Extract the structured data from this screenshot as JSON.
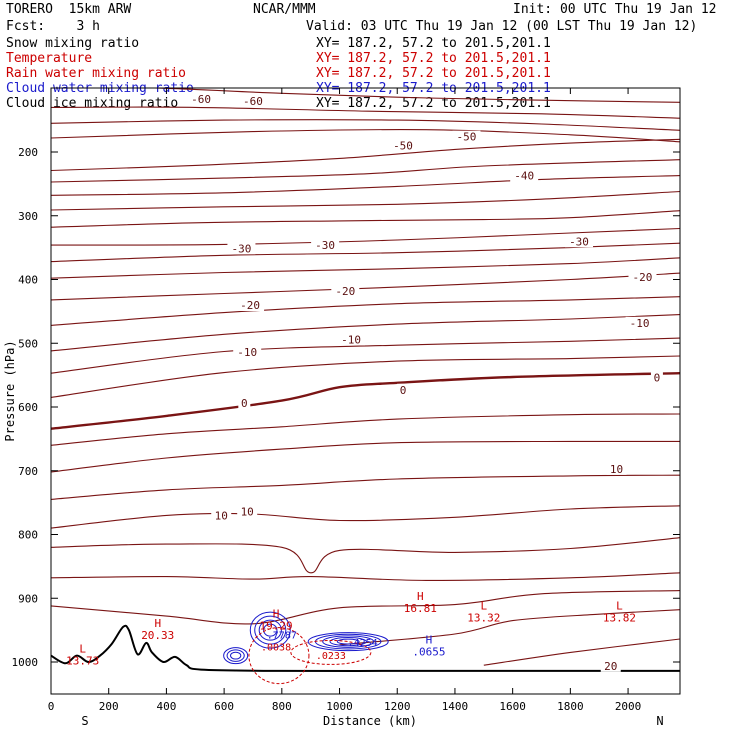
{
  "header": {
    "model": "TORERO  15km ARW",
    "center": "NCAR/MMM",
    "init": "Init: 00 UTC Thu 19 Jan 12",
    "fcst": "Fcst:    3 h",
    "valid": "Valid: 03 UTC Thu 19 Jan 12 (00 LST Thu 19 Jan 12)"
  },
  "fields": [
    {
      "name": "Snow mixing ratio",
      "xy": "XY= 187.2, 57.2 to 201.5,201.1",
      "color": "#000000"
    },
    {
      "name": "Temperature",
      "xy": "XY= 187.2, 57.2 to 201.5,201.1",
      "color": "#cc0000"
    },
    {
      "name": "Rain water mixing ratio",
      "xy": "XY= 187.2, 57.2 to 201.5,201.1",
      "color": "#cc0000"
    },
    {
      "name": "Cloud water mixing ratio",
      "xy": "XY= 187.2, 57.2 to 201.5,201.1",
      "color": "#1a1acc"
    },
    {
      "name": "Cloud ice mixing ratio",
      "xy": "XY= 187.2, 57.2 to 201.5,201.1",
      "color": "#000000"
    }
  ],
  "chart_data": {
    "type": "contour cross-section",
    "xlabel": "Distance (km)",
    "ylabel": "Pressure (hPa)",
    "xlim": [
      0,
      2180
    ],
    "ylim": [
      1050,
      100
    ],
    "x_ticks": [
      0,
      200,
      400,
      600,
      800,
      1000,
      1200,
      1400,
      1600,
      1800,
      2000
    ],
    "y_ticks": [
      200,
      300,
      400,
      500,
      600,
      700,
      800,
      900,
      1000
    ],
    "end_labels": {
      "left": "S",
      "right": "N"
    },
    "temperature_contours_C": [
      {
        "level": -60,
        "points": [
          [
            0,
            95
          ],
          [
            400,
            100
          ],
          [
            800,
            108
          ],
          [
            1200,
            114
          ],
          [
            1600,
            118
          ],
          [
            2180,
            122
          ]
        ]
      },
      {
        "level": -60,
        "points": [
          [
            0,
            130
          ],
          [
            500,
            130
          ],
          [
            1100,
            136
          ],
          [
            1700,
            140
          ],
          [
            2180,
            147
          ]
        ]
      },
      {
        "level": -60,
        "points": [
          [
            0,
            155
          ],
          [
            600,
            150
          ],
          [
            1200,
            150
          ],
          [
            1700,
            156
          ],
          [
            2180,
            166
          ]
        ]
      },
      {
        "level": -60,
        "points": [
          [
            0,
            178
          ],
          [
            700,
            168
          ],
          [
            1300,
            165
          ],
          [
            1800,
            173
          ],
          [
            2180,
            184
          ]
        ]
      },
      {
        "level": -50,
        "points": [
          [
            0,
            229
          ],
          [
            500,
            221
          ],
          [
            1000,
            210
          ],
          [
            1400,
            196
          ],
          [
            1800,
            186
          ],
          [
            2180,
            180
          ]
        ]
      },
      {
        "level": -50,
        "points": [
          [
            0,
            247
          ],
          [
            600,
            241
          ],
          [
            1100,
            234
          ],
          [
            1500,
            222
          ],
          [
            2180,
            212
          ]
        ]
      },
      {
        "level": -40,
        "points": [
          [
            0,
            268
          ],
          [
            600,
            264
          ],
          [
            1200,
            254
          ],
          [
            1700,
            243
          ],
          [
            2180,
            237
          ]
        ]
      },
      {
        "level": -40,
        "points": [
          [
            0,
            291
          ],
          [
            600,
            286
          ],
          [
            1200,
            282
          ],
          [
            1700,
            274
          ],
          [
            2180,
            262
          ]
        ]
      },
      {
        "level": -30,
        "points": [
          [
            0,
            318
          ],
          [
            500,
            311
          ],
          [
            1000,
            308
          ],
          [
            1500,
            306
          ],
          [
            1800,
            303
          ],
          [
            2180,
            292
          ]
        ]
      },
      {
        "level": -30,
        "points": [
          [
            0,
            346
          ],
          [
            600,
            345
          ],
          [
            1200,
            338
          ],
          [
            1800,
            327
          ],
          [
            2180,
            320
          ]
        ]
      },
      {
        "level": -30,
        "points": [
          [
            0,
            372
          ],
          [
            600,
            362
          ],
          [
            1200,
            358
          ],
          [
            1800,
            350
          ],
          [
            2180,
            343
          ]
        ]
      },
      {
        "level": -20,
        "points": [
          [
            0,
            398
          ],
          [
            600,
            389
          ],
          [
            1200,
            383
          ],
          [
            1800,
            375
          ],
          [
            2180,
            366
          ]
        ]
      },
      {
        "level": -20,
        "points": [
          [
            0,
            432
          ],
          [
            600,
            422
          ],
          [
            1200,
            412
          ],
          [
            1800,
            400
          ],
          [
            2180,
            390
          ]
        ]
      },
      {
        "level": -10,
        "points": [
          [
            0,
            472
          ],
          [
            600,
            452
          ],
          [
            1200,
            438
          ],
          [
            1800,
            432
          ],
          [
            2180,
            427
          ]
        ]
      },
      {
        "level": -10,
        "points": [
          [
            0,
            512
          ],
          [
            600,
            486
          ],
          [
            1200,
            470
          ],
          [
            1800,
            462
          ],
          [
            2180,
            455
          ]
        ]
      },
      {
        "level": -10,
        "points": [
          [
            0,
            547
          ],
          [
            600,
            513
          ],
          [
            1200,
            503
          ],
          [
            1800,
            497
          ],
          [
            2180,
            492
          ]
        ]
      },
      {
        "level": -10,
        "points": [
          [
            0,
            585
          ],
          [
            600,
            546
          ],
          [
            1200,
            528
          ],
          [
            1800,
            524
          ],
          [
            2180,
            520
          ]
        ]
      },
      {
        "level": 0,
        "points": [
          [
            0,
            634
          ],
          [
            400,
            614
          ],
          [
            800,
            590
          ],
          [
            1000,
            569
          ],
          [
            1200,
            562
          ],
          [
            1600,
            553
          ],
          [
            2180,
            547
          ]
        ]
      },
      {
        "level": 0,
        "points": [
          [
            0,
            660
          ],
          [
            400,
            642
          ],
          [
            800,
            631
          ],
          [
            1200,
            619
          ],
          [
            1800,
            612
          ],
          [
            2180,
            611
          ]
        ]
      },
      {
        "level": 10,
        "points": [
          [
            0,
            702
          ],
          [
            400,
            680
          ],
          [
            800,
            666
          ],
          [
            1200,
            656
          ],
          [
            1800,
            654
          ],
          [
            2180,
            654
          ]
        ]
      },
      {
        "level": 10,
        "points": [
          [
            0,
            745
          ],
          [
            400,
            730
          ],
          [
            800,
            723
          ],
          [
            1200,
            713
          ],
          [
            1800,
            708
          ],
          [
            2180,
            707
          ]
        ]
      },
      {
        "level": 10,
        "points": [
          [
            0,
            790
          ],
          [
            400,
            770
          ],
          [
            700,
            768
          ],
          [
            1000,
            778
          ],
          [
            1400,
            773
          ],
          [
            1800,
            760
          ],
          [
            2180,
            755
          ]
        ]
      },
      {
        "level": 10,
        "points": [
          [
            0,
            820
          ],
          [
            400,
            815
          ],
          [
            800,
            820
          ],
          [
            900,
            860
          ],
          [
            1000,
            825
          ],
          [
            1400,
            828
          ],
          [
            1800,
            822
          ],
          [
            2180,
            805
          ]
        ]
      },
      {
        "level": 20,
        "points": [
          [
            0,
            868
          ],
          [
            400,
            866
          ],
          [
            700,
            870
          ],
          [
            900,
            866
          ],
          [
            1300,
            872
          ],
          [
            1800,
            868
          ],
          [
            2180,
            860
          ]
        ]
      },
      {
        "level": 20,
        "points": [
          [
            0,
            912
          ],
          [
            400,
            928
          ],
          [
            700,
            940
          ],
          [
            1000,
            915
          ],
          [
            1400,
            910
          ],
          [
            1700,
            893
          ],
          [
            2180,
            888
          ]
        ]
      },
      {
        "level": 20,
        "points": [
          [
            1000,
            973
          ],
          [
            1400,
            956
          ],
          [
            1600,
            935
          ],
          [
            1900,
            925
          ],
          [
            2180,
            918
          ]
        ]
      },
      {
        "level": 20,
        "points": [
          [
            1500,
            1005
          ],
          [
            1800,
            985
          ],
          [
            2180,
            964
          ]
        ]
      }
    ],
    "contour_labels": [
      {
        "text": "-60",
        "x": 520,
        "p": 117
      },
      {
        "text": "-60",
        "x": 700,
        "p": 120
      },
      {
        "text": "-50",
        "x": 1220,
        "p": 190
      },
      {
        "text": "-50",
        "x": 1440,
        "p": 176
      },
      {
        "text": "-40",
        "x": 1640,
        "p": 237
      },
      {
        "text": "-30",
        "x": 660,
        "p": 351
      },
      {
        "text": "-30",
        "x": 950,
        "p": 346
      },
      {
        "text": "-30",
        "x": 1830,
        "p": 340
      },
      {
        "text": "-20",
        "x": 690,
        "p": 440
      },
      {
        "text": "-20",
        "x": 1020,
        "p": 418
      },
      {
        "text": "-20",
        "x": 2050,
        "p": 396
      },
      {
        "text": "-10",
        "x": 680,
        "p": 514
      },
      {
        "text": "-10",
        "x": 1040,
        "p": 494
      },
      {
        "text": "-10",
        "x": 2040,
        "p": 468
      },
      {
        "text": "0",
        "x": 670,
        "p": 594
      },
      {
        "text": "0",
        "x": 1220,
        "p": 573
      },
      {
        "text": "0",
        "x": 2100,
        "p": 554
      },
      {
        "text": "10",
        "x": 590,
        "p": 770
      },
      {
        "text": "10",
        "x": 680,
        "p": 764
      },
      {
        "text": "10",
        "x": 1960,
        "p": 697
      },
      {
        "text": "20",
        "x": 1940,
        "p": 1006
      }
    ],
    "extrema": [
      {
        "kind": "L",
        "value": "13.73",
        "x": 110,
        "p": 985,
        "color": "#cc0000"
      },
      {
        "kind": "H",
        "value": "20.33",
        "x": 370,
        "p": 945,
        "color": "#cc0000"
      },
      {
        "kind": "H",
        "value": "16.81",
        "x": 1280,
        "p": 903,
        "color": "#cc0000"
      },
      {
        "kind": "L",
        "value": "13.32",
        "x": 1500,
        "p": 918,
        "color": "#cc0000"
      },
      {
        "kind": "L",
        "value": "13.82",
        "x": 1970,
        "p": 918,
        "color": "#cc0000"
      },
      {
        "kind": "H",
        "value": "19.29",
        "x": 780,
        "p": 930,
        "color": "#cc0000"
      },
      {
        "kind": "H",
        "value": ".0655",
        "x": 1310,
        "p": 971,
        "color": "#1a1acc"
      }
    ],
    "small_labels": [
      {
        "text": ".7787",
        "x": 800,
        "p": 963,
        "color": "#1a1acc"
      },
      {
        "text": ".0038",
        "x": 780,
        "p": 982,
        "color": "#cc0000"
      },
      {
        "text": ".0233",
        "x": 970,
        "p": 995,
        "color": "#cc0000"
      },
      {
        "text": ".4254",
        "x": 1080,
        "p": 975,
        "color": "#1a1acc"
      }
    ],
    "terrain_hpa": [
      [
        0,
        990
      ],
      [
        50,
        1002
      ],
      [
        90,
        990
      ],
      [
        130,
        1000
      ],
      [
        170,
        990
      ],
      [
        210,
        972
      ],
      [
        250,
        945
      ],
      [
        270,
        950
      ],
      [
        300,
        988
      ],
      [
        330,
        970
      ],
      [
        350,
        985
      ],
      [
        390,
        1000
      ],
      [
        430,
        992
      ],
      [
        470,
        1005
      ],
      [
        520,
        1012
      ],
      [
        800,
        1014
      ],
      [
        1200,
        1014
      ],
      [
        1600,
        1014
      ],
      [
        2180,
        1014
      ]
    ]
  }
}
